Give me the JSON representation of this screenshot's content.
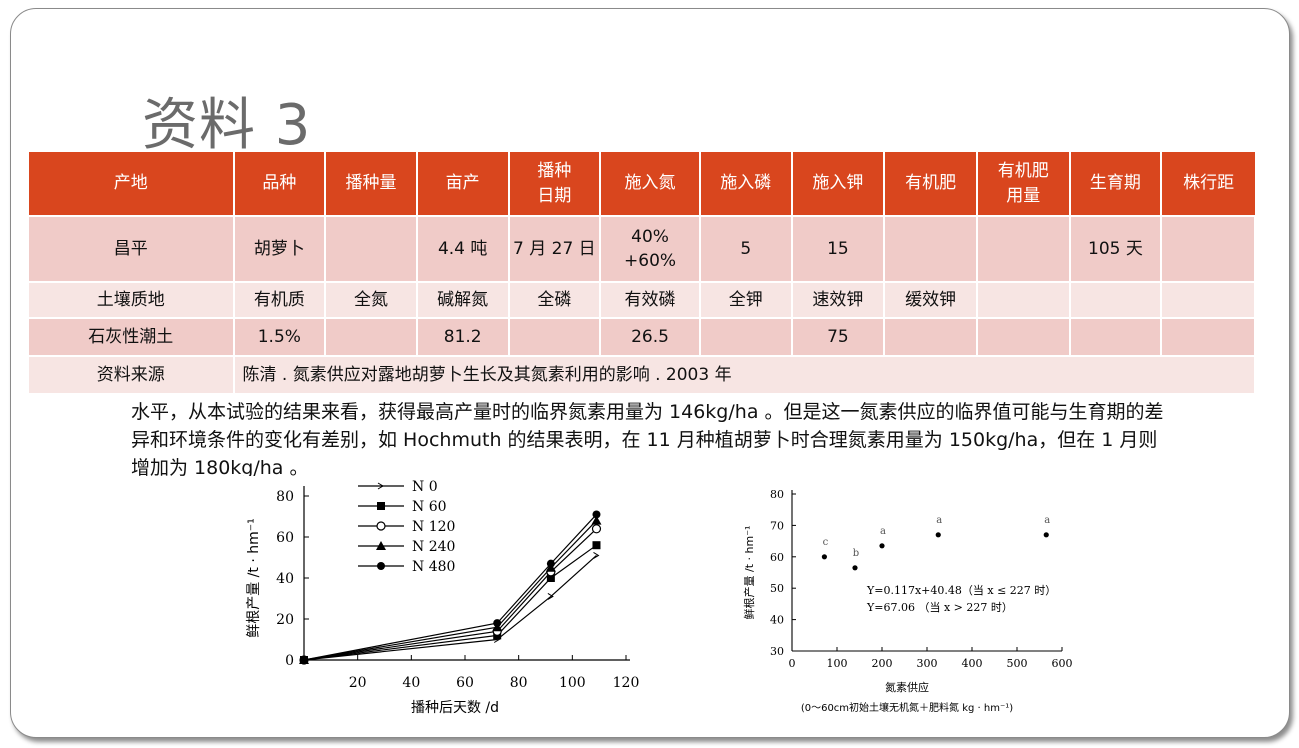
{
  "title": "资料 3",
  "table": {
    "headers": [
      "产地",
      "品种",
      "播种量",
      "亩产",
      "播种\n日期",
      "施入氮",
      "施入磷",
      "施入钾",
      "有机肥",
      "有机肥\n用量",
      "生育期",
      "株行距"
    ],
    "row1": [
      "昌平",
      "胡萝卜",
      "",
      "4.4 吨",
      "7 月 27 日",
      "40%\n+60%",
      "5",
      "15",
      "",
      "",
      "105 天",
      ""
    ],
    "row2": [
      "土壤质地",
      "有机质",
      "全氮",
      "碱解氮",
      "全磷",
      "有效磷",
      "全钾",
      "速效钾",
      "缓效钾",
      "",
      "",
      ""
    ],
    "row3": [
      "石灰性潮土",
      "1.5%",
      "",
      "81.2",
      "",
      "26.5",
      "",
      "75",
      "",
      "",
      "",
      ""
    ],
    "source_label": "资料来源",
    "source_text": "陈清 . 氮素供应对露地胡萝卜生长及其氮素利用的影响 . 2003 年"
  },
  "paragraph": "水平，从本试验的结果来看，获得最高产量时的临界氮素用量为 146kg/ha 。但是这一氮素供应的临界值可能与生育期的差异和环境条件的变化有差别，如 Hochmuth 的结果表明，在 11 月种植胡萝卜时合理氮素用量为 150kg/ha，但在 1 月则增加为 180kg/ha 。",
  "chart_data": [
    {
      "type": "line",
      "xlabel": "播种后天数 /d",
      "ylabel": "鲜根产量 /t · hm⁻¹",
      "xlim": [
        0,
        120
      ],
      "ylim": [
        0,
        80
      ],
      "xticks": [
        "20",
        "40",
        "60",
        "80",
        "100",
        "120"
      ],
      "yticks": [
        "0",
        "20",
        "40",
        "60",
        "80"
      ],
      "x": [
        0,
        72,
        92,
        109
      ],
      "series": [
        {
          "name": "N 0",
          "marker": "none",
          "values": [
            0,
            10,
            31,
            51
          ]
        },
        {
          "name": "N 60",
          "marker": "square",
          "values": [
            0,
            12,
            40,
            56
          ]
        },
        {
          "name": "N 120",
          "marker": "open-circle",
          "values": [
            0,
            14,
            43,
            64
          ]
        },
        {
          "name": "N 240",
          "marker": "triangle",
          "values": [
            0,
            16,
            45,
            68
          ]
        },
        {
          "name": "N 480",
          "marker": "filled-circle",
          "values": [
            0,
            18,
            47,
            71
          ]
        }
      ]
    },
    {
      "type": "scatter",
      "xlabel": "氮素供应",
      "xlabel2": "(0～60cm初始土壤无机氮＋肥料氮 kg · hm⁻¹)",
      "ylabel": "鲜根产量 /t · hm⁻¹",
      "xlim": [
        0,
        600
      ],
      "ylim": [
        30,
        80
      ],
      "xticks": [
        "0",
        "100",
        "200",
        "300",
        "400",
        "500",
        "600"
      ],
      "yticks": [
        "30",
        "40",
        "50",
        "60",
        "70",
        "80"
      ],
      "points": [
        {
          "x": 72,
          "y": 60,
          "label": "c"
        },
        {
          "x": 140,
          "y": 56.5,
          "label": "b"
        },
        {
          "x": 200,
          "y": 63.5,
          "label": "a"
        },
        {
          "x": 325,
          "y": 67,
          "label": "a"
        },
        {
          "x": 565,
          "y": 67,
          "label": "a"
        }
      ],
      "equation1": "Y=0.117x+40.48（当 x ≤ 227 时）",
      "equation2": "Y=67.06            （当 x > 227 时）"
    }
  ]
}
